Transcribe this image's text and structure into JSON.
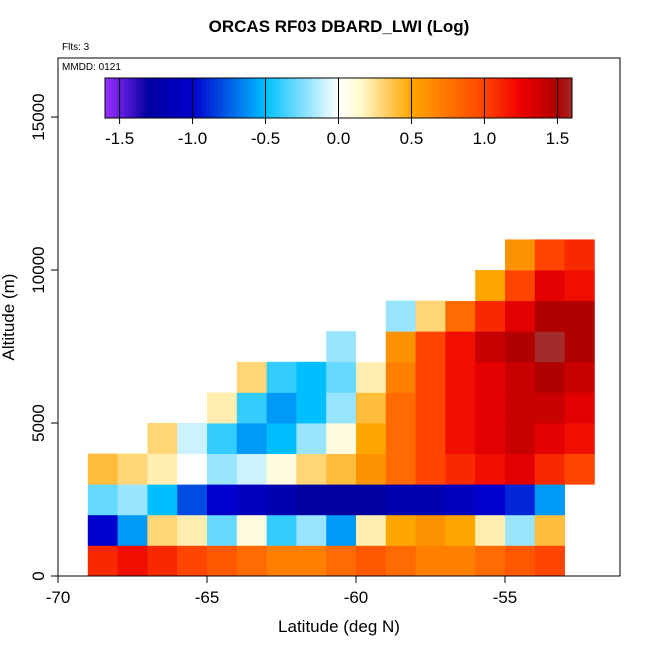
{
  "chart_data": {
    "type": "heatmap",
    "title": "ORCAS RF03 DBARD_LWI (Log)",
    "subtitle": "Flts: 3",
    "annotation": "MMDD: 0121",
    "x_label": "Latitude (deg N)",
    "y_label": "Altitude (m)",
    "xlim": [
      -70,
      -51.14
    ],
    "ylim": [
      0,
      16930
    ],
    "xticks": [
      -70,
      -65,
      -60,
      -55
    ],
    "yticks": [
      0,
      5000,
      10000,
      15000
    ],
    "colorbar_lim": [
      -1.6,
      1.6
    ],
    "colorbar_ticks": [
      -1.5,
      {
        "value": -1,
        "label": "-1.0"
      },
      -0.5,
      {
        "value": 0,
        "label": "0.0"
      },
      0.5,
      {
        "value": 1,
        "label": "1.0"
      },
      1.5
    ],
    "colorscale": [
      [
        -1.6,
        "#9b30ff"
      ],
      [
        -1.3,
        "#0000a0"
      ],
      [
        -1.0,
        "#0000cd"
      ],
      [
        -0.5,
        "#00bfff"
      ],
      [
        0,
        "#ffffff"
      ],
      [
        0.15,
        "#fffacd"
      ],
      [
        0.5,
        "#ffa500"
      ],
      [
        1.0,
        "#ff4500"
      ],
      [
        1.25,
        "#ee0000"
      ],
      [
        1.5,
        "#b00000"
      ],
      [
        1.6,
        "#a52a2a"
      ]
    ],
    "x_edges": [
      -69,
      -68,
      -67,
      -66,
      -65,
      -64,
      -63,
      -62,
      -61,
      -60,
      -59,
      -58,
      -57,
      -56,
      -55,
      -54,
      -53,
      -52
    ],
    "y_edges": [
      0,
      1000,
      2000,
      3000,
      4000,
      5000,
      6000,
      7000,
      8000,
      9000,
      10000,
      11000
    ],
    "z": [
      [
        1.1,
        1.2,
        1.1,
        1.0,
        0.9,
        0.8,
        0.7,
        0.7,
        0.8,
        0.9,
        0.8,
        0.7,
        0.7,
        0.8,
        0.9,
        1.0,
        null
      ],
      [
        -1.0,
        -0.6,
        0.3,
        0.2,
        -0.3,
        0.1,
        -0.4,
        -0.2,
        -0.6,
        0.2,
        0.5,
        0.6,
        0.5,
        0.2,
        -0.2,
        0.4,
        null
      ],
      [
        -0.3,
        -0.2,
        -0.5,
        -0.8,
        -1.0,
        -1.1,
        -1.2,
        -1.3,
        -1.3,
        -1.3,
        -1.2,
        -1.2,
        -1.1,
        -1.0,
        -0.9,
        -0.6,
        null
      ],
      [
        0.4,
        0.3,
        0.2,
        0.0,
        -0.2,
        -0.1,
        0.1,
        0.3,
        0.4,
        0.6,
        0.8,
        1.0,
        1.1,
        1.2,
        1.3,
        1.1,
        1.0
      ],
      [
        null,
        null,
        0.3,
        -0.1,
        -0.4,
        -0.6,
        -0.5,
        -0.2,
        0.1,
        0.5,
        0.8,
        1.0,
        1.2,
        1.3,
        1.4,
        1.3,
        1.2
      ],
      [
        null,
        null,
        null,
        null,
        0.2,
        -0.4,
        -0.6,
        -0.5,
        -0.2,
        0.4,
        0.8,
        1.0,
        1.2,
        1.3,
        1.4,
        1.4,
        1.3
      ],
      [
        null,
        null,
        null,
        null,
        null,
        0.3,
        -0.4,
        -0.5,
        -0.3,
        0.2,
        0.7,
        1.0,
        1.2,
        1.3,
        1.4,
        1.5,
        1.4
      ],
      [
        null,
        null,
        null,
        null,
        null,
        null,
        null,
        null,
        -0.2,
        0.0,
        0.6,
        1.0,
        1.2,
        1.4,
        1.5,
        1.6,
        1.5
      ],
      [
        null,
        null,
        null,
        null,
        null,
        null,
        null,
        null,
        null,
        null,
        -0.2,
        0.3,
        0.8,
        1.1,
        1.3,
        1.5,
        1.5
      ],
      [
        null,
        null,
        null,
        null,
        null,
        null,
        null,
        null,
        null,
        null,
        null,
        null,
        0.0,
        0.5,
        1.0,
        1.3,
        1.2
      ],
      [
        null,
        null,
        null,
        null,
        null,
        null,
        null,
        null,
        null,
        null,
        null,
        null,
        null,
        null,
        0.6,
        1.0,
        1.1
      ]
    ]
  }
}
